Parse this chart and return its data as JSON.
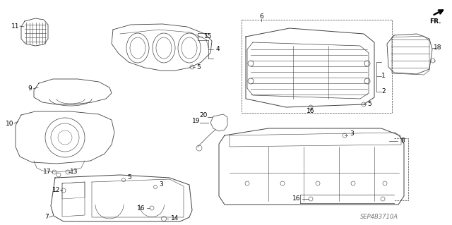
{
  "bg_color": "#ffffff",
  "lc": "#404040",
  "lc2": "#606060",
  "lw": 0.7,
  "lw_thin": 0.4,
  "fs": 6.5,
  "watermark": "SEP4B3710A",
  "fr_label": "FR."
}
